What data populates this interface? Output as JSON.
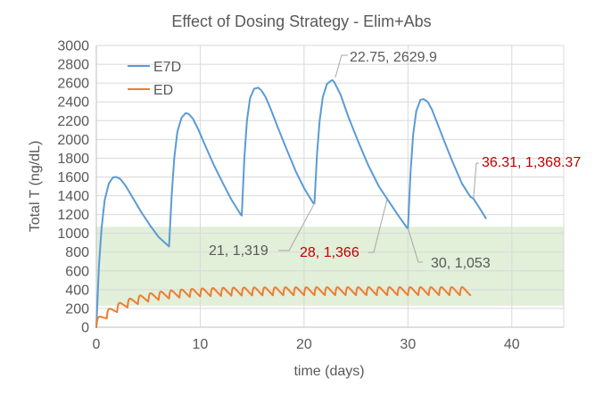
{
  "chart_data": {
    "type": "line",
    "title": "Effect of Dosing Strategy - Elim+Abs",
    "xlabel": "time (days)",
    "ylabel": "Total T (ng/dL)",
    "xlim": [
      0,
      45
    ],
    "ylim": [
      0,
      3000
    ],
    "x_ticks": [
      0,
      10,
      20,
      30,
      40
    ],
    "y_ticks": [
      0,
      200,
      400,
      600,
      800,
      1000,
      1200,
      1400,
      1600,
      1800,
      2000,
      2200,
      2400,
      2600,
      2800,
      3000
    ],
    "grid": "vertical and horizontal",
    "legend_position": "top-left",
    "shaded_band": {
      "y_range": [
        230,
        1070
      ],
      "x_range": [
        0,
        45
      ],
      "color": "#e2efd9"
    },
    "series": [
      {
        "name": "E7D",
        "color": "#5b9bd5",
        "dosing_interval_days": 7,
        "x": [
          0,
          0.25,
          0.5,
          0.8,
          1.2,
          1.6,
          1.9,
          2.3,
          2.8,
          3.5,
          4.3,
          5.2,
          6.0,
          6.9,
          7.0,
          7.25,
          7.5,
          7.8,
          8.2,
          8.6,
          8.9,
          9.3,
          9.8,
          10.5,
          11.3,
          12.2,
          13.0,
          13.9,
          14.0,
          14.25,
          14.5,
          14.8,
          15.2,
          15.6,
          15.9,
          16.3,
          16.8,
          17.5,
          18.3,
          19.2,
          20.0,
          20.9,
          21.0,
          21.25,
          21.5,
          21.8,
          22.2,
          22.6,
          22.75,
          22.9,
          23.5,
          24.3,
          25.2,
          26.2,
          27.2,
          28.0,
          29.0,
          29.9,
          30.0,
          30.25,
          30.5,
          30.8,
          31.2,
          31.5,
          31.9,
          32.3,
          32.8,
          33.5,
          34.3,
          35.2,
          36.0,
          36.31,
          37.0,
          37.5
        ],
        "y": [
          0,
          650,
          1050,
          1350,
          1530,
          1595,
          1600,
          1580,
          1510,
          1380,
          1230,
          1080,
          960,
          870,
          860,
          1400,
          1800,
          2080,
          2230,
          2280,
          2270,
          2220,
          2110,
          1930,
          1730,
          1530,
          1360,
          1200,
          1190,
          1800,
          2200,
          2440,
          2540,
          2550,
          2520,
          2450,
          2320,
          2120,
          1900,
          1660,
          1480,
          1319,
          1320,
          1850,
          2200,
          2450,
          2590,
          2625,
          2629.9,
          2610,
          2480,
          2230,
          1980,
          1720,
          1500,
          1366,
          1200,
          1060,
          1053,
          1650,
          2050,
          2300,
          2420,
          2430,
          2400,
          2320,
          2180,
          1980,
          1760,
          1530,
          1390,
          1368.37,
          1250,
          1160
        ]
      },
      {
        "name": "ED",
        "color": "#ed7d31",
        "dosing_interval_days": 1,
        "decay_rate_per_day": 0.32,
        "absorption_rate_per_day": 11,
        "dose_scale_ng_dl": 125,
        "start_day": 0,
        "end_day": 36
      }
    ],
    "annotations": [
      {
        "text": "22.75, 2629.9",
        "x": 22.75,
        "y": 2629.9,
        "color": "#595959"
      },
      {
        "text": "21, 1,319",
        "x": 21,
        "y": 1319,
        "color": "#595959"
      },
      {
        "text": "28, 1,366",
        "x": 28,
        "y": 1366,
        "color": "#c00000"
      },
      {
        "text": "30, 1,053",
        "x": 30,
        "y": 1053,
        "color": "#595959"
      },
      {
        "text": "36.31, 1,368.37",
        "x": 36.31,
        "y": 1368.37,
        "color": "#c00000"
      }
    ]
  }
}
